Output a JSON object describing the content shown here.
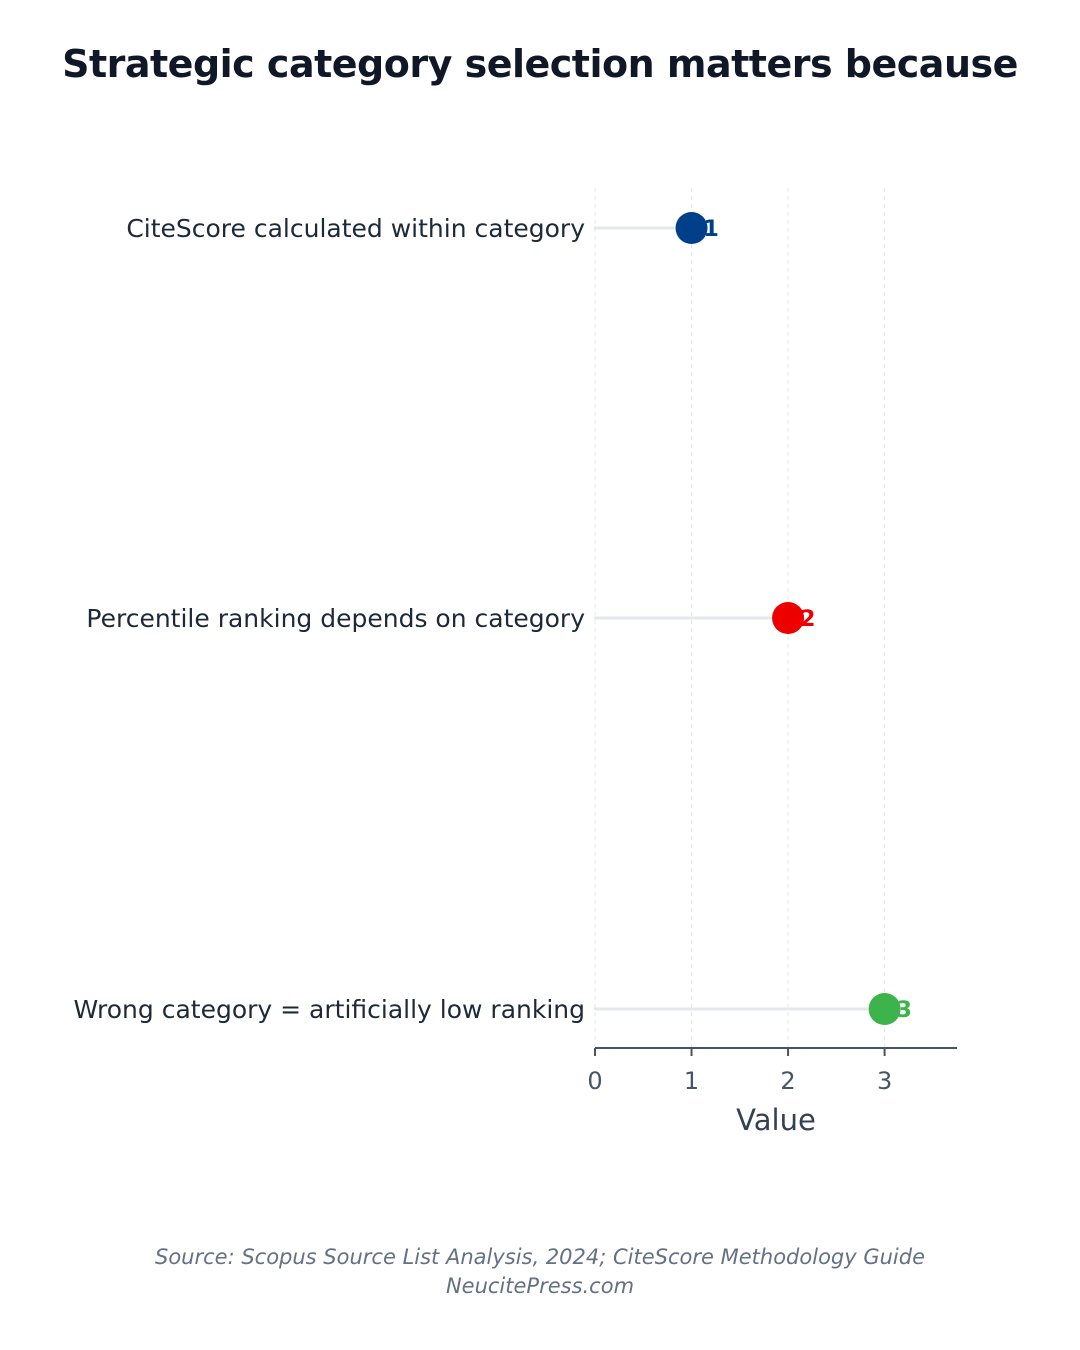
{
  "chart_data": {
    "type": "lollipop",
    "title": "Strategic category selection matters because",
    "xlabel": "Value",
    "ylabel": "",
    "xlim": [
      0,
      3.75
    ],
    "x_ticks": [
      0,
      1,
      2,
      3
    ],
    "grid": true,
    "points": [
      {
        "category": "CiteScore calculated within category",
        "value": 1,
        "label": "1",
        "color": "#003f8a"
      },
      {
        "category": "Percentile ranking depends on category",
        "value": 2,
        "label": "2",
        "color": "#ee0000"
      },
      {
        "category": "Wrong category = artificially low ranking",
        "value": 3,
        "label": "3",
        "color": "#3cb44b"
      }
    ]
  },
  "footer": {
    "source": "Source: Scopus Source List Analysis, 2024; CiteScore Methodology Guide",
    "credit": "NeucitePress.com"
  }
}
